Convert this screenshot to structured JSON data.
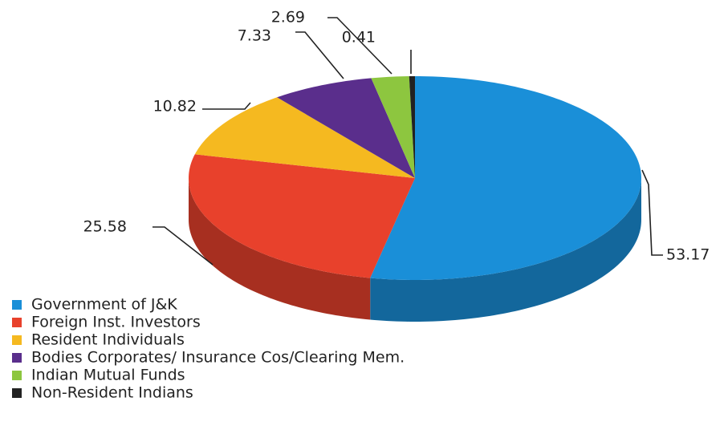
{
  "chart_data": {
    "type": "pie",
    "categories": [
      "Government of J&K",
      "Foreign Inst. Investors",
      "Resident Individuals",
      "Bodies Corporates/ Insurance Cos/Clearing Mem.",
      "Indian Mutual Funds",
      "Non-Resident Indians"
    ],
    "values": [
      53.17,
      25.58,
      10.82,
      7.33,
      2.69,
      0.41
    ],
    "colors": [
      "#1a8fd8",
      "#e8412c",
      "#f5b920",
      "#5a2e8c",
      "#8dc63f",
      "#222222"
    ],
    "legend": "bottom-left"
  }
}
